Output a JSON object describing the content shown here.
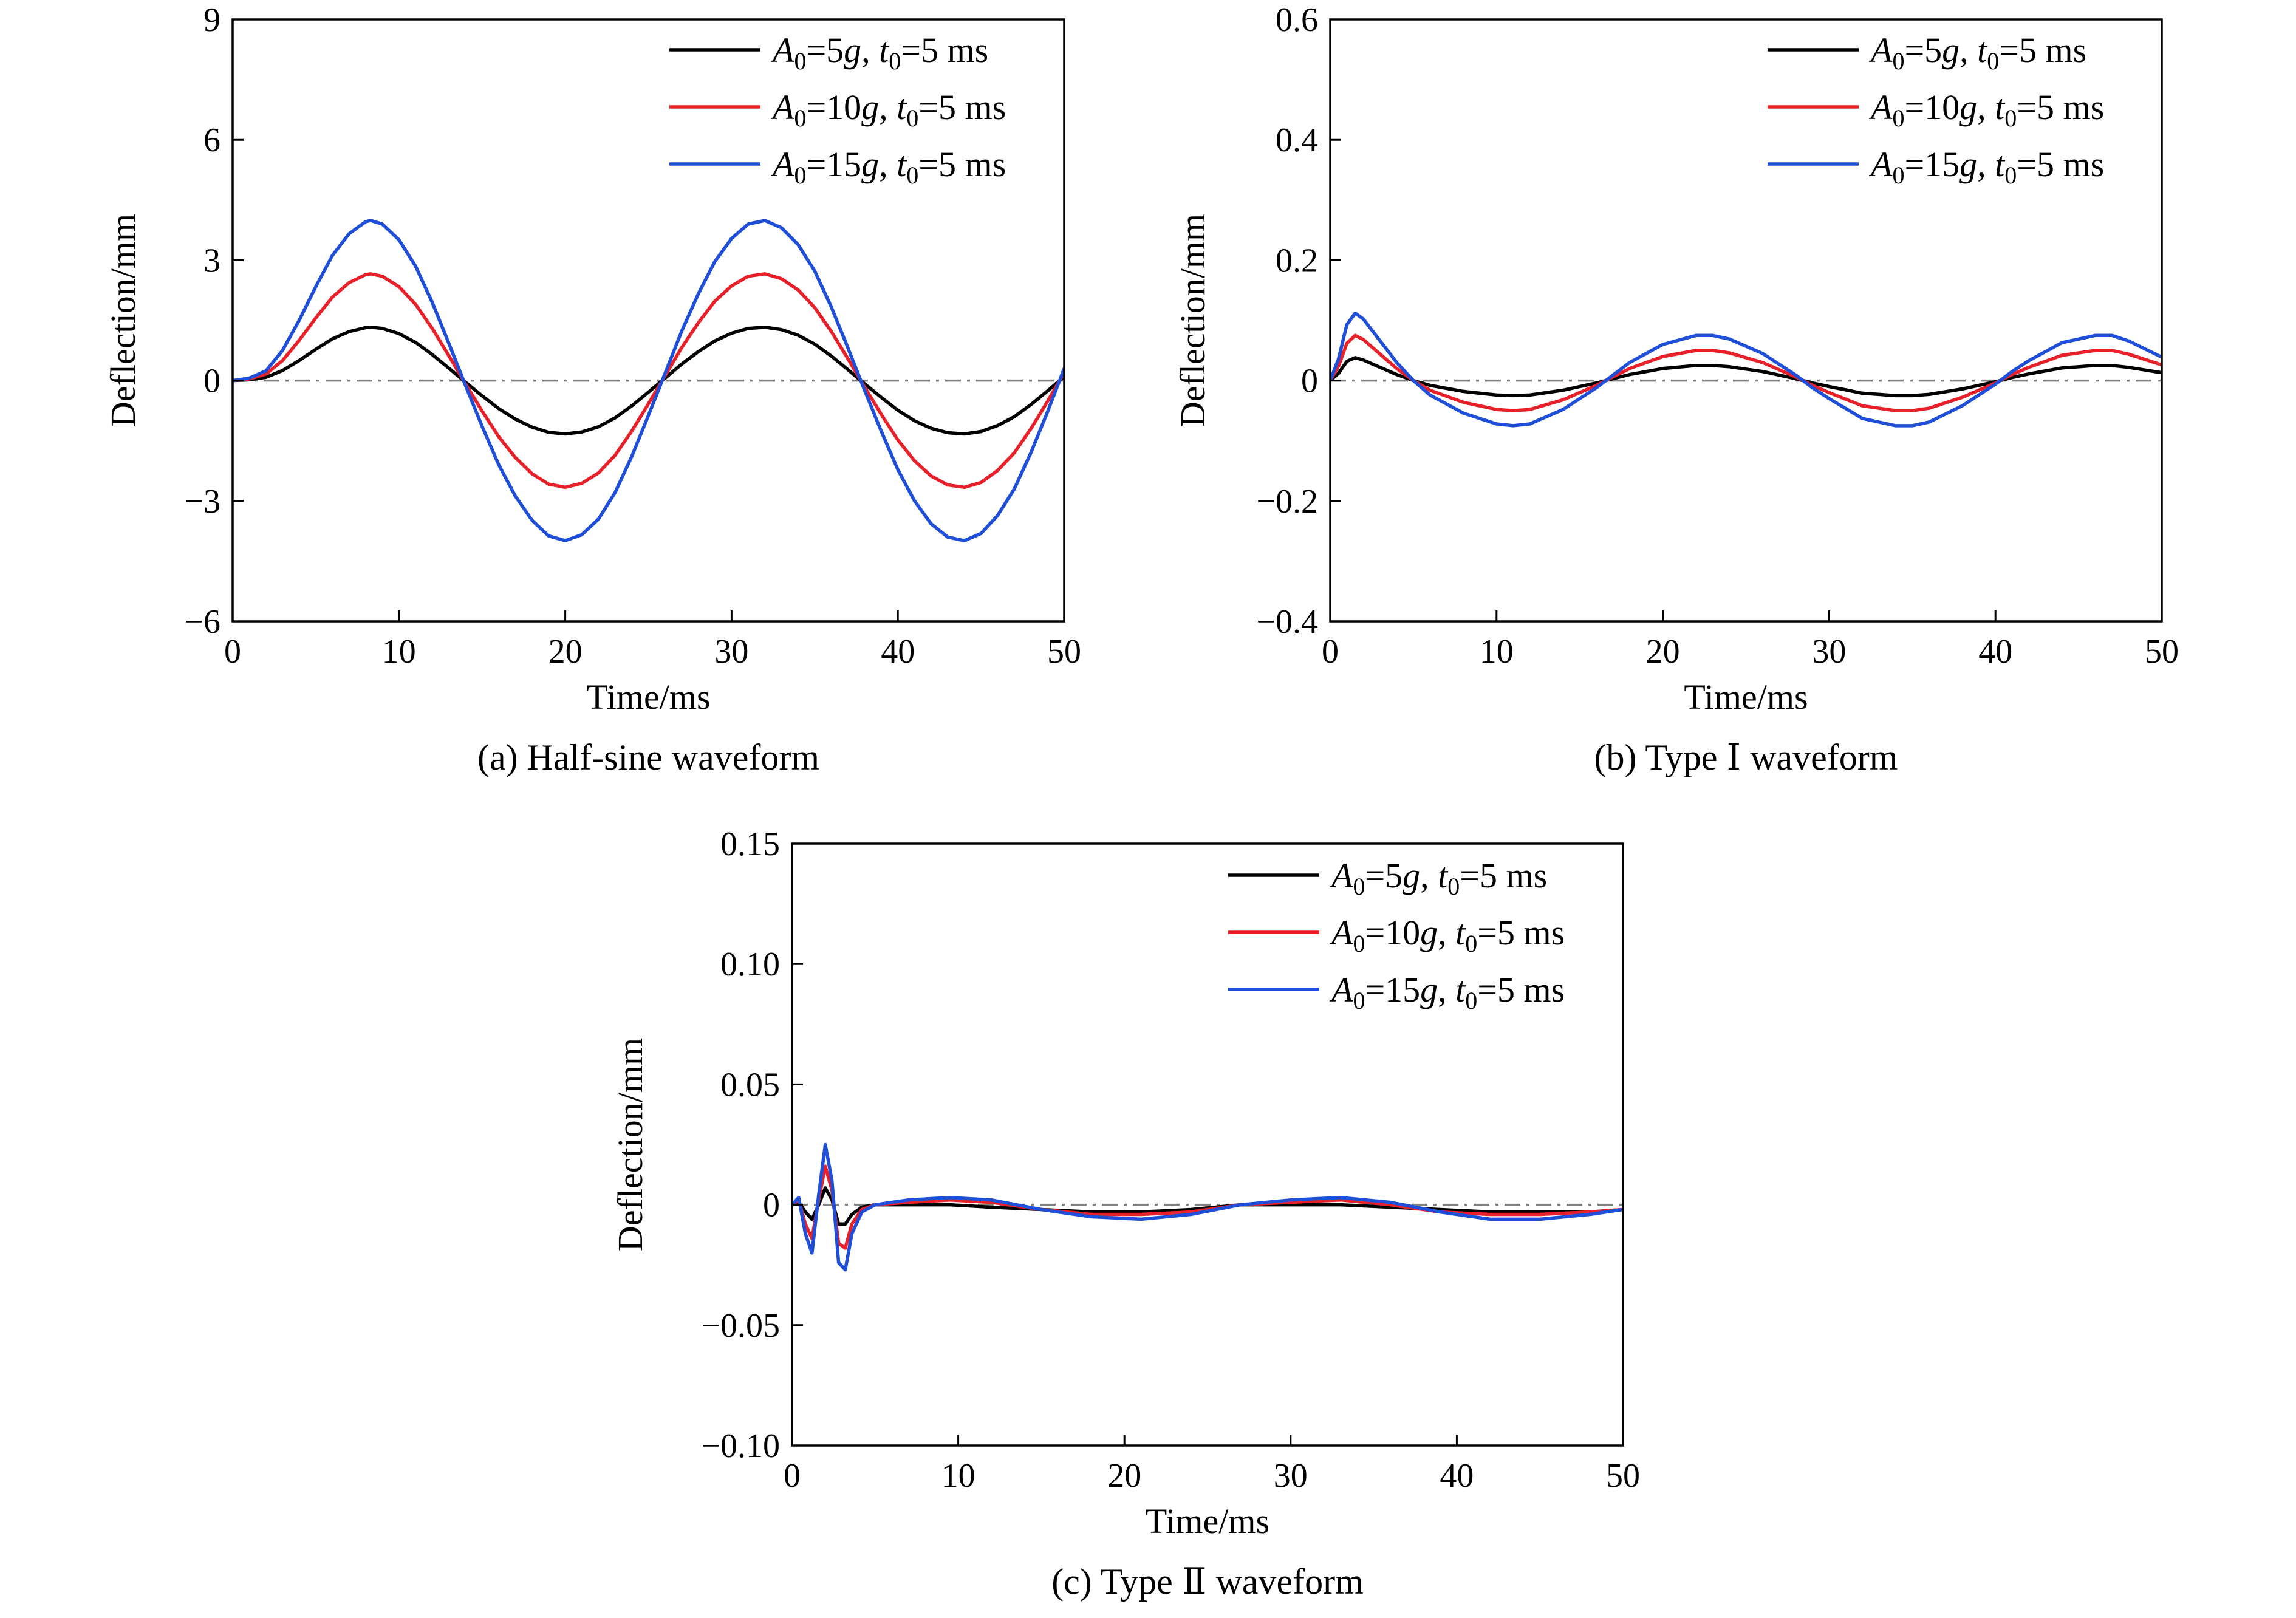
{
  "colors": {
    "series": [
      "#000000",
      "#e8202a",
      "#1f4fd8"
    ],
    "zero_line": "#808080"
  },
  "chart_data": [
    {
      "type": "line",
      "caption": "(a) Half-sine waveform",
      "xlabel": "Time/ms",
      "ylabel": "Deflection/mm",
      "xlim": [
        0,
        50
      ],
      "ylim": [
        -6,
        9
      ],
      "xticks": [
        0,
        10,
        20,
        30,
        40,
        50
      ],
      "yticks": [
        -6,
        -3,
        0,
        3,
        6,
        9
      ],
      "ytick_labels": [
        "−6",
        "−3",
        "0",
        "3",
        "6",
        "9"
      ],
      "legend_position": "top-right",
      "legend": [
        {
          "A0": "5",
          "t0": "5 ms"
        },
        {
          "A0": "10",
          "t0": "5 ms"
        },
        {
          "A0": "15",
          "t0": "5 ms"
        }
      ],
      "series": [
        {
          "name": "A0=5g, t0=5 ms",
          "x": [
            0,
            1,
            2,
            3,
            4,
            5,
            6,
            7,
            8,
            8.3,
            9,
            10,
            11,
            12,
            13,
            14,
            15,
            16,
            17,
            18,
            19,
            20,
            21,
            22,
            23,
            24,
            25,
            26,
            27,
            28,
            29,
            30,
            31,
            32,
            33,
            34,
            35,
            36,
            37,
            38,
            39,
            40,
            41,
            42,
            43,
            44,
            45,
            46,
            47,
            48,
            49,
            50
          ],
          "y": [
            0,
            0.02,
            0.08,
            0.25,
            0.5,
            0.78,
            1.04,
            1.22,
            1.32,
            1.33,
            1.3,
            1.17,
            0.95,
            0.65,
            0.31,
            -0.04,
            -0.38,
            -0.7,
            -0.96,
            -1.16,
            -1.29,
            -1.33,
            -1.28,
            -1.15,
            -0.93,
            -0.63,
            -0.29,
            0.06,
            0.41,
            0.72,
            0.99,
            1.18,
            1.3,
            1.33,
            1.27,
            1.13,
            0.91,
            0.61,
            0.27,
            -0.08,
            -0.42,
            -0.74,
            -1.0,
            -1.19,
            -1.3,
            -1.33,
            -1.27,
            -1.12,
            -0.9,
            -0.6,
            -0.26,
            0.1
          ]
        },
        {
          "name": "A0=10g, t0=5 ms",
          "x": [
            0,
            1,
            2,
            3,
            4,
            5,
            6,
            7,
            8,
            8.3,
            9,
            10,
            11,
            12,
            13,
            14,
            15,
            16,
            17,
            18,
            19,
            20,
            21,
            22,
            23,
            24,
            25,
            26,
            27,
            28,
            29,
            30,
            31,
            32,
            33,
            34,
            35,
            36,
            37,
            38,
            39,
            40,
            41,
            42,
            43,
            44,
            45,
            46,
            47,
            48,
            49,
            50
          ],
          "y": [
            0,
            0.04,
            0.16,
            0.5,
            1.0,
            1.56,
            2.08,
            2.44,
            2.64,
            2.66,
            2.6,
            2.34,
            1.9,
            1.3,
            0.62,
            -0.08,
            -0.76,
            -1.4,
            -1.92,
            -2.32,
            -2.58,
            -2.66,
            -2.56,
            -2.3,
            -1.86,
            -1.26,
            -0.58,
            0.12,
            0.82,
            1.44,
            1.98,
            2.36,
            2.6,
            2.66,
            2.54,
            2.26,
            1.82,
            1.22,
            0.54,
            -0.16,
            -0.84,
            -1.48,
            -2.0,
            -2.38,
            -2.6,
            -2.66,
            -2.54,
            -2.24,
            -1.8,
            -1.2,
            -0.52,
            0.2
          ]
        },
        {
          "name": "A0=15g, t0=5 ms",
          "x": [
            0,
            1,
            2,
            3,
            4,
            5,
            6,
            7,
            8,
            8.3,
            9,
            10,
            11,
            12,
            13,
            14,
            15,
            16,
            17,
            18,
            19,
            20,
            21,
            22,
            23,
            24,
            25,
            26,
            27,
            28,
            29,
            30,
            31,
            32,
            33,
            34,
            35,
            36,
            37,
            38,
            39,
            40,
            41,
            42,
            43,
            44,
            45,
            46,
            47,
            48,
            49,
            50
          ],
          "y": [
            0,
            0.06,
            0.24,
            0.75,
            1.5,
            2.34,
            3.12,
            3.66,
            3.96,
            3.99,
            3.9,
            3.51,
            2.85,
            1.95,
            0.93,
            -0.12,
            -1.14,
            -2.1,
            -2.88,
            -3.48,
            -3.87,
            -3.99,
            -3.84,
            -3.45,
            -2.79,
            -1.89,
            -0.87,
            0.18,
            1.23,
            2.16,
            2.97,
            3.54,
            3.9,
            3.99,
            3.81,
            3.39,
            2.73,
            1.83,
            0.81,
            -0.24,
            -1.26,
            -2.22,
            -3.0,
            -3.57,
            -3.9,
            -3.99,
            -3.81,
            -3.36,
            -2.7,
            -1.8,
            -0.78,
            0.3
          ]
        }
      ]
    },
    {
      "type": "line",
      "caption": "(b) Type Ⅰ waveform",
      "xlabel": "Time/ms",
      "ylabel": "Deflection/mm",
      "xlim": [
        0,
        50
      ],
      "ylim": [
        -0.4,
        0.6
      ],
      "xticks": [
        0,
        10,
        20,
        30,
        40,
        50
      ],
      "yticks": [
        -0.4,
        -0.2,
        0,
        0.2,
        0.4,
        0.6
      ],
      "ytick_labels": [
        "−0.4",
        "−0.2",
        "0",
        "0.2",
        "0.4",
        "0.6"
      ],
      "legend_position": "top-right",
      "legend": [
        {
          "A0": "5",
          "t0": "5 ms"
        },
        {
          "A0": "10",
          "t0": "5 ms"
        },
        {
          "A0": "15",
          "t0": "5 ms"
        }
      ],
      "series": [
        {
          "name": "A0=5g, t0=5 ms",
          "x": [
            0,
            0.5,
            1,
            1.5,
            2,
            3,
            4,
            5,
            6,
            8,
            10,
            11,
            12,
            14,
            16,
            17,
            18,
            20,
            22,
            23,
            24,
            26,
            28,
            29,
            30,
            32,
            34,
            35,
            36,
            38,
            40,
            41,
            42,
            44,
            46,
            47,
            48,
            50
          ],
          "y": [
            0,
            0.012,
            0.032,
            0.038,
            0.034,
            0.022,
            0.01,
            0.0,
            -0.008,
            -0.018,
            -0.024,
            -0.025,
            -0.024,
            -0.016,
            -0.004,
            0.003,
            0.01,
            0.02,
            0.025,
            0.025,
            0.023,
            0.015,
            0.003,
            -0.004,
            -0.01,
            -0.021,
            -0.025,
            -0.025,
            -0.023,
            -0.014,
            -0.002,
            0.005,
            0.011,
            0.021,
            0.025,
            0.025,
            0.022,
            0.013
          ]
        },
        {
          "name": "A0=10g, t0=5 ms",
          "x": [
            0,
            0.5,
            1,
            1.5,
            2,
            3,
            4,
            5,
            6,
            8,
            10,
            11,
            12,
            14,
            16,
            17,
            18,
            20,
            22,
            23,
            24,
            26,
            28,
            29,
            30,
            32,
            34,
            35,
            36,
            38,
            40,
            41,
            42,
            44,
            46,
            47,
            48,
            50
          ],
          "y": [
            0,
            0.024,
            0.062,
            0.075,
            0.068,
            0.044,
            0.02,
            0.0,
            -0.016,
            -0.036,
            -0.048,
            -0.05,
            -0.048,
            -0.032,
            -0.008,
            0.006,
            0.02,
            0.04,
            0.05,
            0.05,
            0.046,
            0.03,
            0.006,
            -0.008,
            -0.02,
            -0.042,
            -0.05,
            -0.05,
            -0.046,
            -0.028,
            -0.004,
            0.01,
            0.022,
            0.042,
            0.05,
            0.05,
            0.044,
            0.026
          ]
        },
        {
          "name": "A0=15g, t0=5 ms",
          "x": [
            0,
            0.5,
            1,
            1.5,
            2,
            3,
            4,
            5,
            6,
            8,
            10,
            11,
            12,
            14,
            16,
            17,
            18,
            20,
            22,
            23,
            24,
            26,
            28,
            29,
            30,
            32,
            34,
            35,
            36,
            38,
            40,
            41,
            42,
            44,
            46,
            47,
            48,
            50
          ],
          "y": [
            0,
            0.036,
            0.093,
            0.112,
            0.102,
            0.066,
            0.03,
            0.0,
            -0.024,
            -0.054,
            -0.072,
            -0.075,
            -0.072,
            -0.048,
            -0.012,
            0.009,
            0.03,
            0.06,
            0.075,
            0.075,
            0.069,
            0.045,
            0.009,
            -0.012,
            -0.03,
            -0.063,
            -0.075,
            -0.075,
            -0.069,
            -0.042,
            -0.006,
            0.015,
            0.033,
            0.063,
            0.075,
            0.075,
            0.066,
            0.039
          ]
        }
      ]
    },
    {
      "type": "line",
      "caption": "(c) Type Ⅱ waveform",
      "xlabel": "Time/ms",
      "ylabel": "Deflection/mm",
      "xlim": [
        0,
        50
      ],
      "ylim": [
        -0.1,
        0.15
      ],
      "xticks": [
        0,
        10,
        20,
        30,
        40,
        50
      ],
      "yticks": [
        -0.1,
        -0.05,
        0,
        0.05,
        0.1,
        0.15
      ],
      "ytick_labels": [
        "−0.10",
        "−0.05",
        "0",
        "0.05",
        "0.10",
        "0.15"
      ],
      "legend_position": "top-right",
      "legend": [
        {
          "A0": "5",
          "t0": "5 ms"
        },
        {
          "A0": "10",
          "t0": "5 ms"
        },
        {
          "A0": "15",
          "t0": "5 ms"
        }
      ],
      "series": [
        {
          "name": "A0=5g, t0=5 ms",
          "x": [
            0,
            0.4,
            0.8,
            1.2,
            1.6,
            2.0,
            2.4,
            2.8,
            3.2,
            3.6,
            4.2,
            5,
            7,
            9.5,
            12,
            15,
            18,
            21,
            24,
            27,
            30,
            33,
            36,
            39,
            42,
            45,
            48,
            50
          ],
          "y": [
            0,
            0.001,
            -0.003,
            -0.006,
            0.0,
            0.007,
            0.002,
            -0.008,
            -0.008,
            -0.004,
            -0.001,
            0.0,
            0.0,
            0.0,
            -0.001,
            -0.002,
            -0.003,
            -0.003,
            -0.002,
            0.0,
            0.0,
            0.0,
            -0.001,
            -0.002,
            -0.003,
            -0.003,
            -0.003,
            -0.002
          ]
        },
        {
          "name": "A0=10g, t0=5 ms",
          "x": [
            0,
            0.4,
            0.8,
            1.2,
            1.6,
            2.0,
            2.4,
            2.8,
            3.2,
            3.6,
            4.2,
            5,
            7,
            9.5,
            12,
            15,
            18,
            21,
            24,
            27,
            30,
            33,
            36,
            39,
            42,
            45,
            48,
            50
          ],
          "y": [
            0,
            0.002,
            -0.008,
            -0.014,
            0.002,
            0.016,
            0.006,
            -0.016,
            -0.018,
            -0.008,
            -0.002,
            0.0,
            0.001,
            0.002,
            0.001,
            -0.002,
            -0.004,
            -0.004,
            -0.003,
            0.0,
            0.001,
            0.002,
            0.0,
            -0.003,
            -0.004,
            -0.004,
            -0.003,
            -0.002
          ]
        },
        {
          "name": "A0=15g, t0=5 ms",
          "x": [
            0,
            0.4,
            0.8,
            1.2,
            1.6,
            2.0,
            2.4,
            2.8,
            3.2,
            3.6,
            4.2,
            5,
            7,
            9.5,
            12,
            15,
            18,
            21,
            24,
            27,
            30,
            33,
            36,
            39,
            42,
            45,
            48,
            50
          ],
          "y": [
            0,
            0.003,
            -0.012,
            -0.02,
            0.004,
            0.025,
            0.01,
            -0.024,
            -0.027,
            -0.012,
            -0.003,
            0.0,
            0.002,
            0.003,
            0.002,
            -0.002,
            -0.005,
            -0.006,
            -0.004,
            0.0,
            0.002,
            0.003,
            0.001,
            -0.003,
            -0.006,
            -0.006,
            -0.004,
            -0.002
          ]
        }
      ]
    }
  ]
}
